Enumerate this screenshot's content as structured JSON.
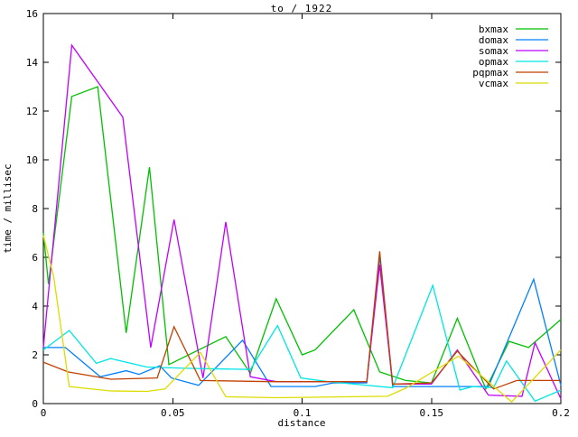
{
  "chart_data": {
    "type": "line",
    "title": "to / 1922",
    "xlabel": "distance",
    "ylabel": "time / millisec",
    "xlim": [
      0,
      0.2
    ],
    "ylim": [
      0,
      16
    ],
    "xticks": [
      0,
      0.05,
      0.1,
      0.15,
      0.2
    ],
    "xtick_labels": [
      "0",
      "0.05",
      "0.1",
      "0.15",
      "0.2"
    ],
    "yticks": [
      0,
      2,
      4,
      6,
      8,
      10,
      12,
      14,
      16
    ],
    "ytick_labels": [
      "0",
      "2",
      "4",
      "6",
      "8",
      "10",
      "12",
      "14",
      "16"
    ],
    "grid": false,
    "legend_position": "top-right-inside",
    "axis_color": "#000000",
    "background_color": "#ffffff",
    "series": [
      {
        "name": "bxmax",
        "color": "#00c000",
        "points": [
          [
            0,
            7.0
          ],
          [
            0.002,
            4.9
          ],
          [
            0.011,
            12.6
          ],
          [
            0.021,
            13.0
          ],
          [
            0.032,
            2.9
          ],
          [
            0.041,
            9.7
          ],
          [
            0.0485,
            1.6
          ],
          [
            0.0705,
            2.75
          ],
          [
            0.08,
            1.25
          ],
          [
            0.09,
            4.3
          ],
          [
            0.1,
            2.0
          ],
          [
            0.105,
            2.2
          ],
          [
            0.12,
            3.85
          ],
          [
            0.13,
            1.3
          ],
          [
            0.14,
            0.95
          ],
          [
            0.15,
            0.85
          ],
          [
            0.16,
            3.5
          ],
          [
            0.171,
            0.6
          ],
          [
            0.18,
            2.55
          ],
          [
            0.1875,
            2.3
          ],
          [
            0.2,
            3.45
          ]
        ]
      },
      {
        "name": "domax",
        "color": "#0080ff",
        "points": [
          [
            0,
            2.3
          ],
          [
            0.0085,
            2.3
          ],
          [
            0.022,
            1.1
          ],
          [
            0.032,
            1.35
          ],
          [
            0.037,
            1.2
          ],
          [
            0.045,
            1.55
          ],
          [
            0.0495,
            1.05
          ],
          [
            0.06,
            0.75
          ],
          [
            0.077,
            2.6
          ],
          [
            0.088,
            0.7
          ],
          [
            0.105,
            0.7
          ],
          [
            0.112,
            0.85
          ],
          [
            0.125,
            0.85
          ],
          [
            0.13,
            6.05
          ],
          [
            0.135,
            0.7
          ],
          [
            0.172,
            0.7
          ],
          [
            0.1895,
            5.1
          ],
          [
            0.2,
            0.75
          ]
        ]
      },
      {
        "name": "somax",
        "color": "#c000ff",
        "points": [
          [
            0,
            2.3
          ],
          [
            0.011,
            14.7
          ],
          [
            0.0307,
            11.75
          ],
          [
            0.0415,
            2.3
          ],
          [
            0.0505,
            7.55
          ],
          [
            0.0617,
            1.05
          ],
          [
            0.0705,
            7.45
          ],
          [
            0.08,
            1.1
          ],
          [
            0.09,
            0.9
          ],
          [
            0.125,
            0.9
          ],
          [
            0.13,
            5.7
          ],
          [
            0.135,
            0.8
          ],
          [
            0.15,
            0.8
          ],
          [
            0.16,
            2.2
          ],
          [
            0.172,
            0.35
          ],
          [
            0.185,
            0.3
          ],
          [
            0.19,
            2.5
          ],
          [
            0.2,
            0.2
          ]
        ]
      },
      {
        "name": "opmax",
        "color": "#00e5e5",
        "points": [
          [
            0,
            2.2
          ],
          [
            0.01,
            3.0
          ],
          [
            0.0205,
            1.65
          ],
          [
            0.026,
            1.85
          ],
          [
            0.04,
            1.5
          ],
          [
            0.055,
            1.45
          ],
          [
            0.08,
            1.4
          ],
          [
            0.0905,
            3.2
          ],
          [
            0.0995,
            1.05
          ],
          [
            0.11,
            0.9
          ],
          [
            0.135,
            0.65
          ],
          [
            0.1505,
            4.85
          ],
          [
            0.161,
            0.56
          ],
          [
            0.166,
            0.7
          ],
          [
            0.174,
            0.65
          ],
          [
            0.179,
            1.75
          ],
          [
            0.19,
            0.1
          ],
          [
            0.2,
            0.55
          ]
        ]
      },
      {
        "name": "pqpmax",
        "color": "#c04000",
        "points": [
          [
            0,
            1.7
          ],
          [
            0.0095,
            1.3
          ],
          [
            0.026,
            1.0
          ],
          [
            0.044,
            1.05
          ],
          [
            0.0505,
            3.15
          ],
          [
            0.0607,
            0.95
          ],
          [
            0.088,
            0.9
          ],
          [
            0.125,
            0.9
          ],
          [
            0.13,
            6.25
          ],
          [
            0.135,
            0.8
          ],
          [
            0.15,
            0.85
          ],
          [
            0.16,
            2.15
          ],
          [
            0.174,
            0.6
          ],
          [
            0.183,
            0.95
          ],
          [
            0.2,
            0.95
          ]
        ]
      },
      {
        "name": "vcmax",
        "color": "#dcdc00",
        "points": [
          [
            0,
            6.9
          ],
          [
            0.004,
            5.2
          ],
          [
            0.01,
            0.7
          ],
          [
            0.026,
            0.52
          ],
          [
            0.04,
            0.5
          ],
          [
            0.047,
            0.6
          ],
          [
            0.0607,
            2.1
          ],
          [
            0.0705,
            0.28
          ],
          [
            0.09,
            0.24
          ],
          [
            0.133,
            0.3
          ],
          [
            0.14,
            0.63
          ],
          [
            0.1605,
            1.95
          ],
          [
            0.181,
            0.07
          ],
          [
            0.2,
            2.2
          ]
        ]
      }
    ]
  }
}
